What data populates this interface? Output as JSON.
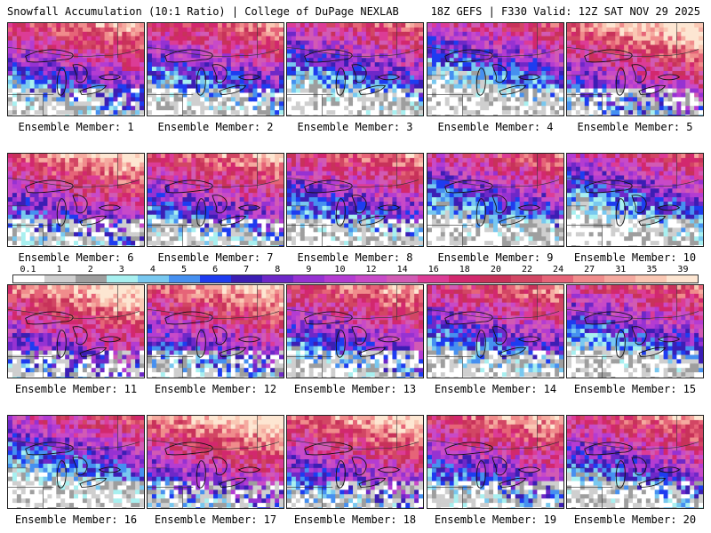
{
  "header": {
    "title": "Snowfall Accumulation (10:1 Ratio) | College of DuPage NEXLAB",
    "run": "18Z GEFS | F330 Valid: 12Z SAT NOV 29 2025"
  },
  "legend": {
    "ticks": [
      "0.1",
      "1",
      "2",
      "3",
      "4",
      "5",
      "6",
      "7",
      "8",
      "9",
      "10",
      "12",
      "14",
      "16",
      "18",
      "20",
      "22",
      "24",
      "27",
      "31",
      "35",
      "39"
    ],
    "colors": [
      "#ffffff",
      "#cfcfcf",
      "#9e9e9e",
      "#a8f0f0",
      "#78c8f0",
      "#4690f0",
      "#1e3cf0",
      "#3c1eb4",
      "#6e28c8",
      "#9632d2",
      "#b43cd2",
      "#c84ac8",
      "#d25ab4",
      "#dc3c96",
      "#d2286e",
      "#c8325a",
      "#d24664",
      "#e66478",
      "#f08c8c",
      "#f5aaa0",
      "#fac8b4",
      "#fde6d2"
    ]
  },
  "panels": [
    {
      "label": "Ensemble Member: 1"
    },
    {
      "label": "Ensemble Member: 2"
    },
    {
      "label": "Ensemble Member: 3"
    },
    {
      "label": "Ensemble Member: 4"
    },
    {
      "label": "Ensemble Member: 5"
    },
    {
      "label": "Ensemble Member: 6"
    },
    {
      "label": "Ensemble Member: 7"
    },
    {
      "label": "Ensemble Member: 8"
    },
    {
      "label": "Ensemble Member: 9"
    },
    {
      "label": "Ensemble Member: 10"
    },
    {
      "label": "Ensemble Member: 11"
    },
    {
      "label": "Ensemble Member: 12"
    },
    {
      "label": "Ensemble Member: 13"
    },
    {
      "label": "Ensemble Member: 14"
    },
    {
      "label": "Ensemble Member: 15"
    },
    {
      "label": "Ensemble Member: 16"
    },
    {
      "label": "Ensemble Member: 17"
    },
    {
      "label": "Ensemble Member: 18"
    },
    {
      "label": "Ensemble Member: 19"
    },
    {
      "label": "Ensemble Member: 20"
    }
  ]
}
